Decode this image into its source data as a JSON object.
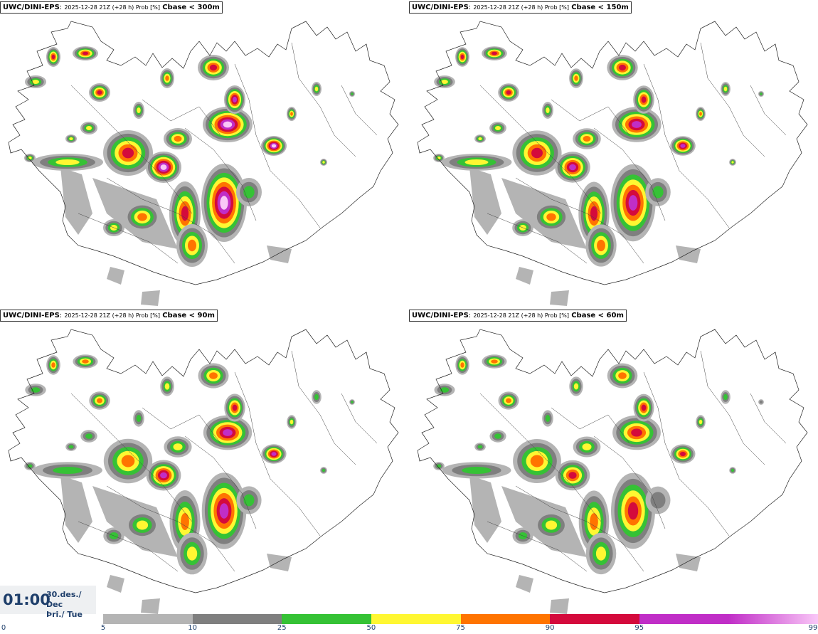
{
  "panels": [
    {
      "model": "UWC/DINI-EPS",
      "meta": "2025-12-28 21Z (+28 h) Prob [%]",
      "variable": "Cbase < 300m",
      "intensity": 1.0
    },
    {
      "model": "UWC/DINI-EPS",
      "meta": "2025-12-28 21Z (+28 h) Prob [%]",
      "variable": "Cbase < 150m",
      "intensity": 0.92
    },
    {
      "model": "UWC/DINI-EPS",
      "meta": "2025-12-28 21Z (+28 h) Prob [%]",
      "variable": "Cbase < 90m",
      "intensity": 0.85
    },
    {
      "model": "UWC/DINI-EPS",
      "meta": "2025-12-28 21Z (+28 h) Prob [%]",
      "variable": "Cbase < 60m",
      "intensity": 0.8
    }
  ],
  "time": {
    "hour": "01:00",
    "date_line1": "30.des./ Dec",
    "date_line2": "Þri./ Tue"
  },
  "colorbar": {
    "ticks": [
      "0",
      "5",
      "10",
      "25",
      "50",
      "75",
      "90",
      "95",
      "99"
    ],
    "colors": [
      "#ffffff",
      "#b4b4b4",
      "#7f7f7f",
      "#35c235",
      "#fff732",
      "#ff7400",
      "#d40a3c",
      "#c02ec7",
      "#f9c7f7"
    ]
  }
}
